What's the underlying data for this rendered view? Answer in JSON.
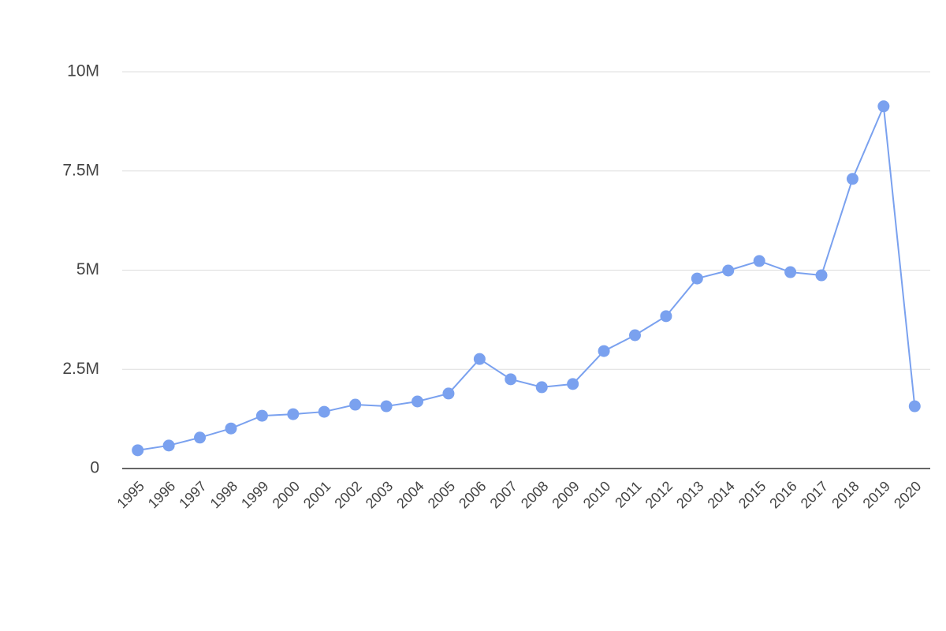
{
  "chart_data": {
    "type": "line",
    "categories": [
      "1995",
      "1996",
      "1997",
      "1998",
      "1999",
      "2000",
      "2001",
      "2002",
      "2003",
      "2004",
      "2005",
      "2006",
      "2007",
      "2008",
      "2009",
      "2010",
      "2011",
      "2012",
      "2013",
      "2014",
      "2015",
      "2016",
      "2017",
      "2018",
      "2019",
      "2020"
    ],
    "values": [
      460000,
      580000,
      780000,
      1010000,
      1330000,
      1370000,
      1430000,
      1610000,
      1570000,
      1690000,
      1890000,
      2760000,
      2250000,
      2050000,
      2130000,
      2960000,
      3360000,
      3840000,
      4790000,
      4990000,
      5230000,
      4950000,
      4870000,
      7300000,
      9130000,
      1570000
    ],
    "color": "#7aa1ef",
    "ylim": [
      0,
      10000000
    ],
    "yticks": [
      0,
      {
        "value": 2500000,
        "label": "2.5M"
      },
      {
        "value": 5000000,
        "label": "5M"
      },
      {
        "value": 7500000,
        "label": "7.5M"
      },
      {
        "value": 10000000,
        "label": "10M"
      }
    ],
    "grid": true
  }
}
